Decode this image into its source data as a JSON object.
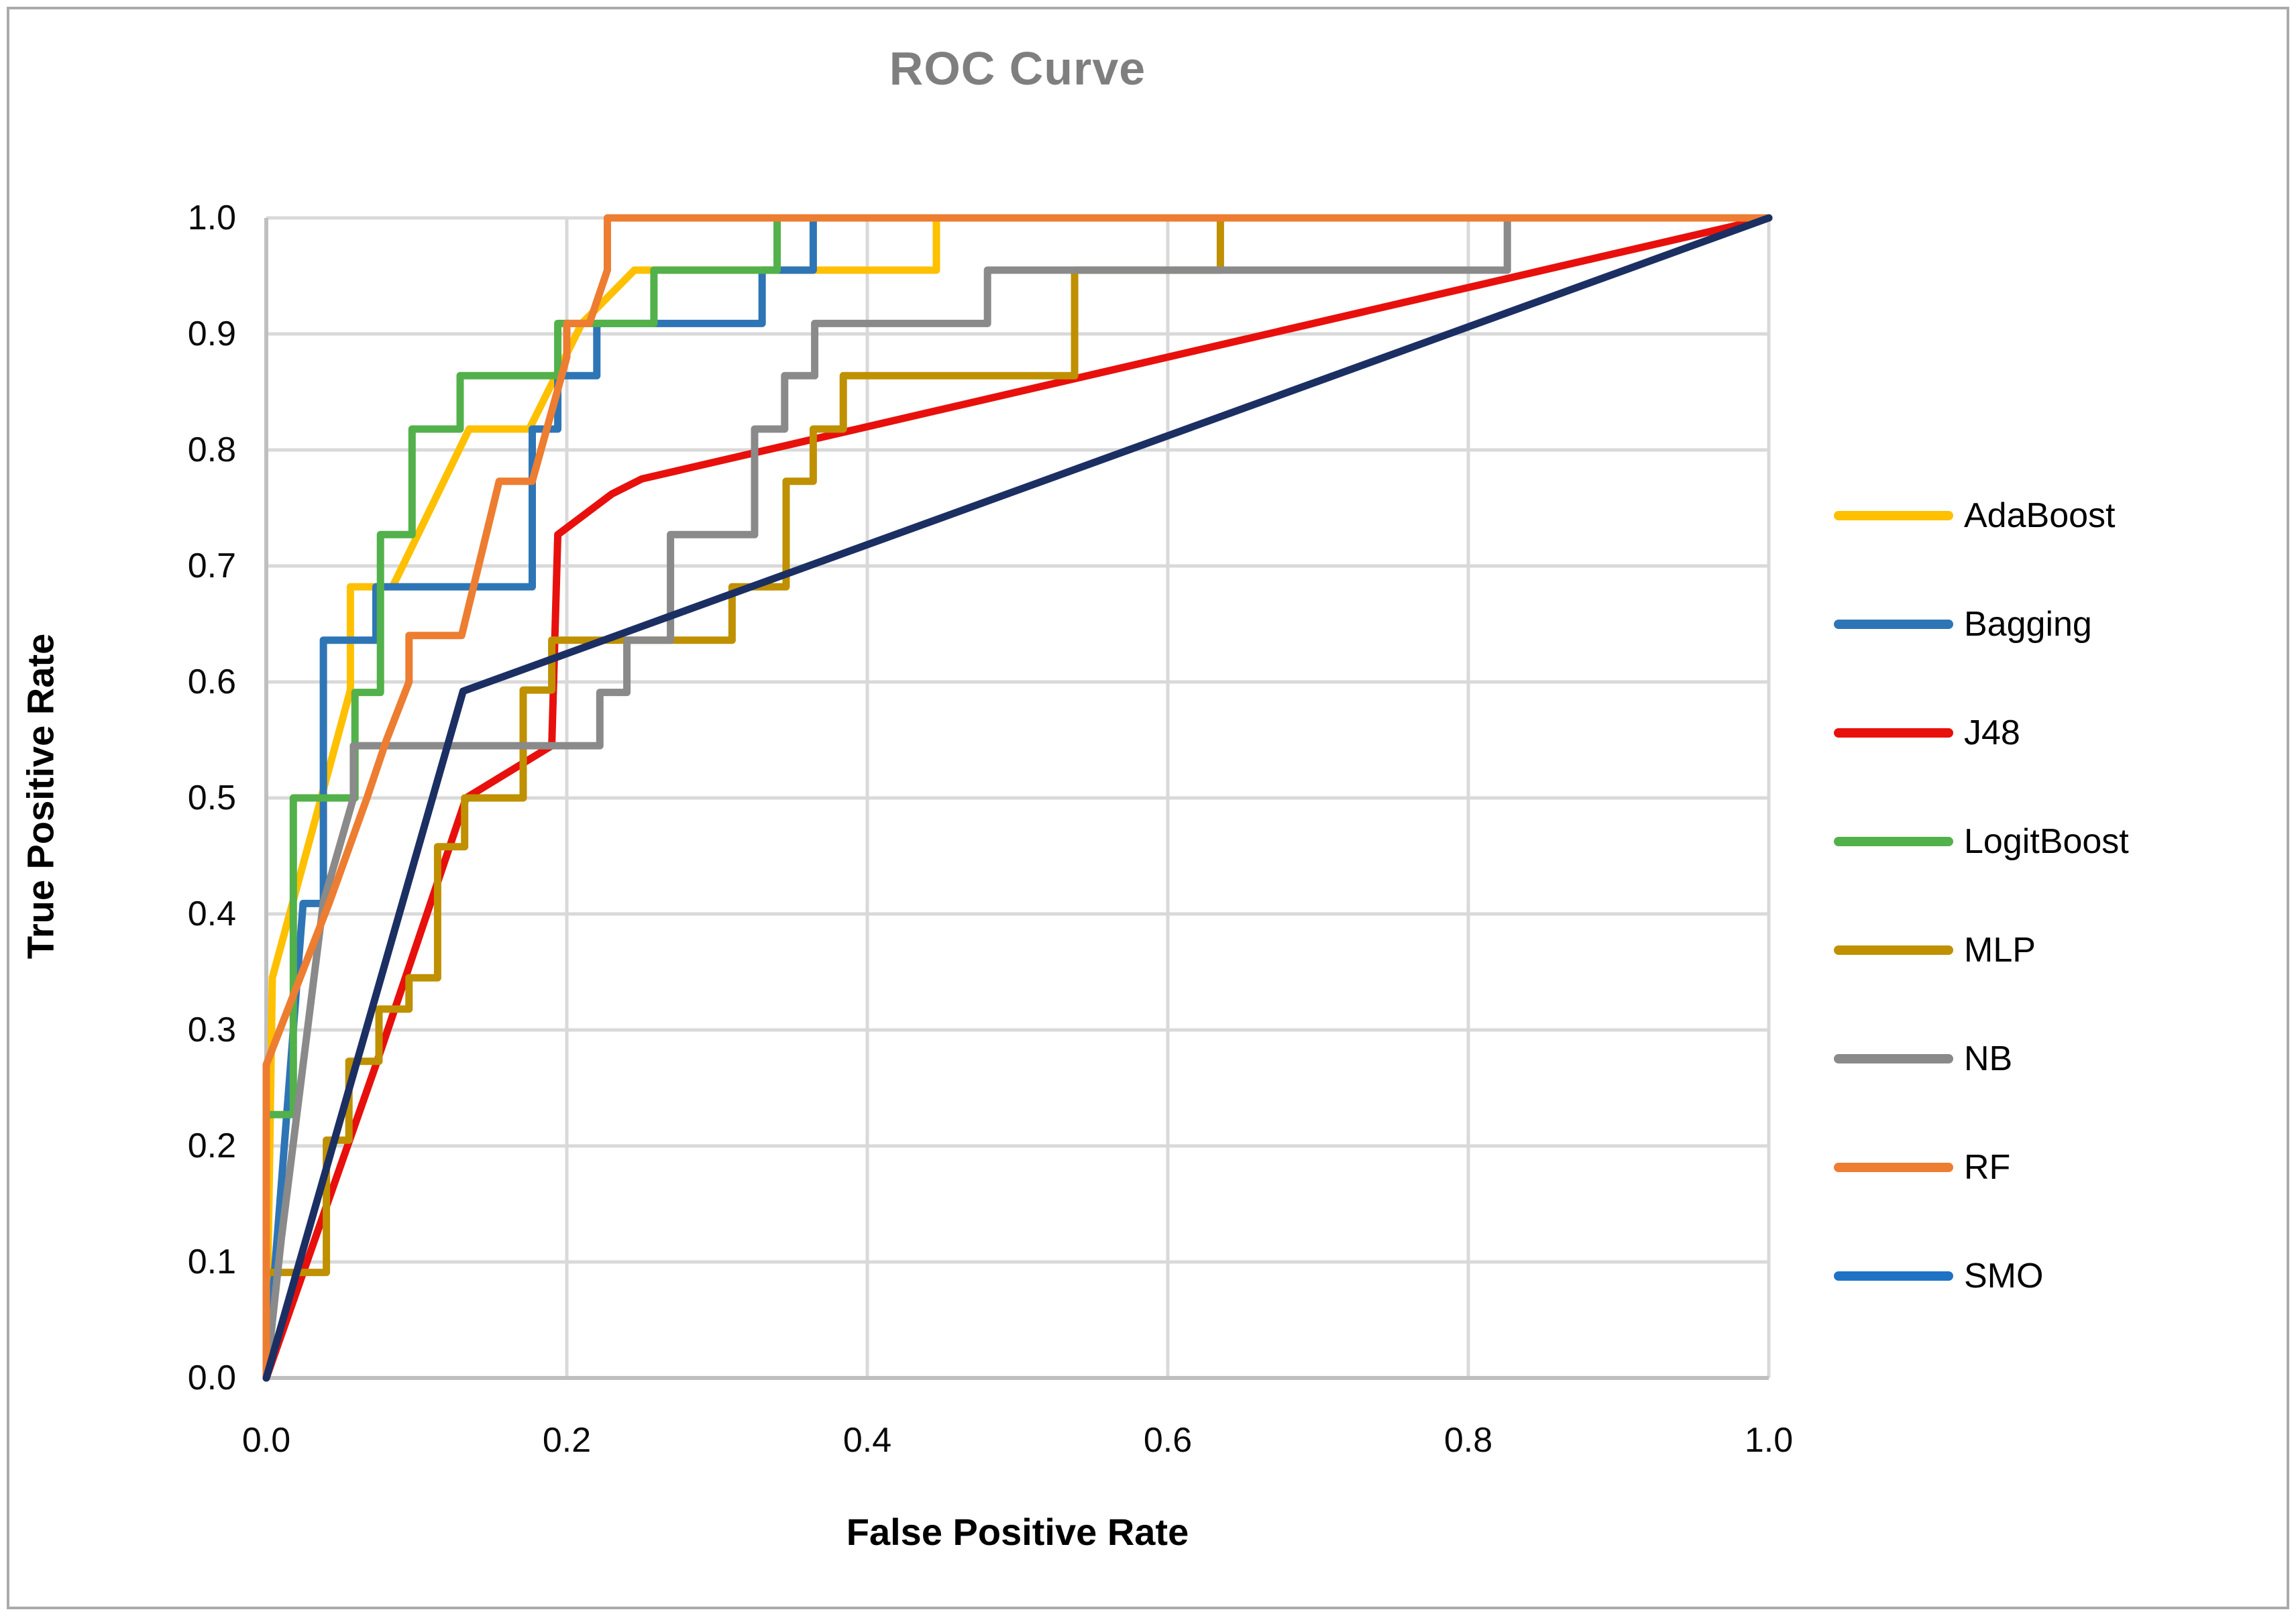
{
  "frame": {
    "border_color": "#ababab",
    "background": "#ffffff"
  },
  "chart_data": {
    "type": "line",
    "title": "ROC Curve",
    "title_color": "#7f7f7f",
    "xlabel": "False Positive Rate",
    "ylabel": "True Positive Rate",
    "xlim": [
      0,
      1
    ],
    "ylim": [
      0,
      1
    ],
    "x_ticks": [
      {
        "v": 0.0,
        "label": "0.0"
      },
      {
        "v": 0.2,
        "label": "0.2"
      },
      {
        "v": 0.4,
        "label": "0.4"
      },
      {
        "v": 0.6,
        "label": "0.6"
      },
      {
        "v": 0.8,
        "label": "0.8"
      },
      {
        "v": 1.0,
        "label": "1.0"
      }
    ],
    "y_ticks": [
      {
        "v": 0.0,
        "label": "0.0"
      },
      {
        "v": 0.1,
        "label": "0.1"
      },
      {
        "v": 0.2,
        "label": "0.2"
      },
      {
        "v": 0.3,
        "label": "0.3"
      },
      {
        "v": 0.4,
        "label": "0.4"
      },
      {
        "v": 0.5,
        "label": "0.5"
      },
      {
        "v": 0.6,
        "label": "0.6"
      },
      {
        "v": 0.7,
        "label": "0.7"
      },
      {
        "v": 0.8,
        "label": "0.8"
      },
      {
        "v": 0.9,
        "label": "0.9"
      },
      {
        "v": 1.0,
        "label": "1.0"
      }
    ],
    "grid": {
      "on": true,
      "color": "#d9d9d9",
      "axis_color": "#bfbfbf",
      "line_width": 5
    },
    "legend_position": "right",
    "curve_stroke_width": 11,
    "series": [
      {
        "name": "AdaBoost",
        "color": "#ffc000",
        "points": [
          [
            0,
            0
          ],
          [
            0.004,
            0.345
          ],
          [
            0.056,
            0.593
          ],
          [
            0.056,
            0.682
          ],
          [
            0.084,
            0.682
          ],
          [
            0.135,
            0.818
          ],
          [
            0.175,
            0.818
          ],
          [
            0.21,
            0.909
          ],
          [
            0.245,
            0.955
          ],
          [
            0.446,
            0.955
          ],
          [
            0.446,
            1
          ],
          [
            1,
            1
          ]
        ]
      },
      {
        "name": "Bagging",
        "color": "#2e75b6",
        "points": [
          [
            0,
            0
          ],
          [
            0.0245,
            0.409
          ],
          [
            0.038,
            0.409
          ],
          [
            0.038,
            0.636
          ],
          [
            0.073,
            0.636
          ],
          [
            0.073,
            0.682
          ],
          [
            0.177,
            0.682
          ],
          [
            0.177,
            0.818
          ],
          [
            0.194,
            0.818
          ],
          [
            0.194,
            0.864
          ],
          [
            0.22,
            0.864
          ],
          [
            0.22,
            0.909
          ],
          [
            0.33,
            0.909
          ],
          [
            0.33,
            0.955
          ],
          [
            0.364,
            0.955
          ],
          [
            0.364,
            1
          ],
          [
            1,
            1
          ]
        ]
      },
      {
        "name": "J48",
        "color": "#e8100c",
        "points": [
          [
            0,
            0
          ],
          [
            0.073,
            0.27
          ],
          [
            0.133,
            0.5
          ],
          [
            0.19,
            0.545
          ],
          [
            0.194,
            0.727
          ],
          [
            0.23,
            0.762
          ],
          [
            0.25,
            0.775
          ],
          [
            1,
            1
          ]
        ]
      },
      {
        "name": "LogitBoost",
        "color": "#52b14a",
        "points": [
          [
            0,
            0
          ],
          [
            0,
            0.227
          ],
          [
            0.018,
            0.227
          ],
          [
            0.018,
            0.5
          ],
          [
            0.059,
            0.5
          ],
          [
            0.059,
            0.591
          ],
          [
            0.076,
            0.591
          ],
          [
            0.076,
            0.727
          ],
          [
            0.097,
            0.727
          ],
          [
            0.097,
            0.818
          ],
          [
            0.129,
            0.818
          ],
          [
            0.129,
            0.864
          ],
          [
            0.194,
            0.864
          ],
          [
            0.194,
            0.909
          ],
          [
            0.258,
            0.909
          ],
          [
            0.258,
            0.955
          ],
          [
            0.34,
            0.955
          ],
          [
            0.34,
            1
          ],
          [
            1,
            1
          ]
        ]
      },
      {
        "name": "MLP",
        "color": "#bf9000",
        "points": [
          [
            0,
            0
          ],
          [
            0,
            0.091
          ],
          [
            0.04,
            0.091
          ],
          [
            0.04,
            0.205
          ],
          [
            0.055,
            0.205
          ],
          [
            0.055,
            0.273
          ],
          [
            0.075,
            0.273
          ],
          [
            0.075,
            0.318
          ],
          [
            0.095,
            0.318
          ],
          [
            0.095,
            0.345
          ],
          [
            0.114,
            0.345
          ],
          [
            0.114,
            0.458
          ],
          [
            0.132,
            0.458
          ],
          [
            0.132,
            0.5
          ],
          [
            0.171,
            0.5
          ],
          [
            0.171,
            0.593
          ],
          [
            0.19,
            0.593
          ],
          [
            0.19,
            0.636
          ],
          [
            0.31,
            0.636
          ],
          [
            0.31,
            0.682
          ],
          [
            0.346,
            0.682
          ],
          [
            0.346,
            0.773
          ],
          [
            0.364,
            0.773
          ],
          [
            0.364,
            0.818
          ],
          [
            0.384,
            0.818
          ],
          [
            0.384,
            0.864
          ],
          [
            0.538,
            0.864
          ],
          [
            0.538,
            0.955
          ],
          [
            0.635,
            0.955
          ],
          [
            0.635,
            1
          ],
          [
            1,
            1
          ]
        ]
      },
      {
        "name": "NB",
        "color": "#8a8a8a",
        "points": [
          [
            0,
            0
          ],
          [
            0.01,
            0.12
          ],
          [
            0.038,
            0.41
          ],
          [
            0.058,
            0.5
          ],
          [
            0.058,
            0.545
          ],
          [
            0.222,
            0.545
          ],
          [
            0.222,
            0.591
          ],
          [
            0.24,
            0.591
          ],
          [
            0.24,
            0.636
          ],
          [
            0.269,
            0.636
          ],
          [
            0.269,
            0.727
          ],
          [
            0.325,
            0.727
          ],
          [
            0.325,
            0.818
          ],
          [
            0.345,
            0.818
          ],
          [
            0.345,
            0.864
          ],
          [
            0.365,
            0.864
          ],
          [
            0.365,
            0.909
          ],
          [
            0.48,
            0.909
          ],
          [
            0.48,
            0.955
          ],
          [
            0.826,
            0.955
          ],
          [
            0.826,
            1
          ],
          [
            1,
            1
          ]
        ]
      },
      {
        "name": "RF",
        "color": "#ed7d31",
        "points": [
          [
            0,
            0
          ],
          [
            0,
            0.27
          ],
          [
            0.042,
            0.41
          ],
          [
            0.067,
            0.5
          ],
          [
            0.08,
            0.55
          ],
          [
            0.095,
            0.6
          ],
          [
            0.095,
            0.64
          ],
          [
            0.13,
            0.64
          ],
          [
            0.155,
            0.773
          ],
          [
            0.177,
            0.773
          ],
          [
            0.2,
            0.88
          ],
          [
            0.2,
            0.909
          ],
          [
            0.215,
            0.909
          ],
          [
            0.227,
            0.955
          ],
          [
            0.227,
            1
          ],
          [
            1,
            1
          ]
        ]
      },
      {
        "name": "SMO",
        "color": "#1b2f63",
        "legend_color": "#1f73c5",
        "points": [
          [
            0,
            0
          ],
          [
            0.131,
            0.592
          ],
          [
            1,
            1
          ]
        ]
      }
    ]
  }
}
